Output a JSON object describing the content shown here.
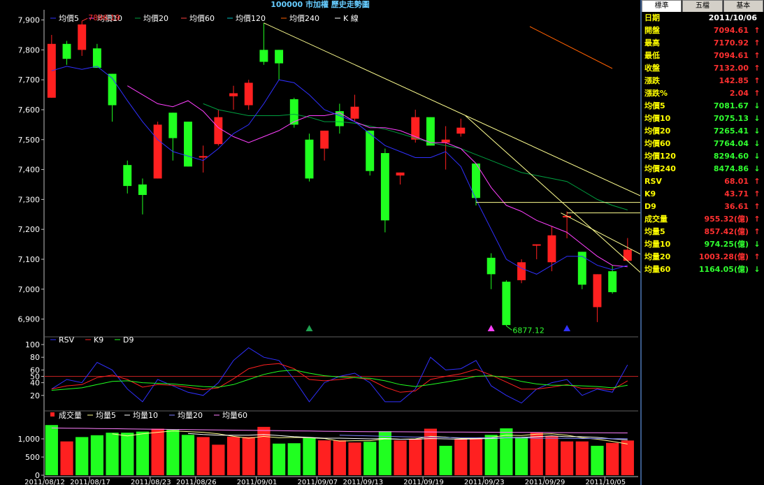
{
  "header": {
    "title": "100000 市加權  歷史走勢圖"
  },
  "colors": {
    "background": "#000000",
    "up": "#ff2020",
    "down": "#20ff20",
    "ma5": "#3030ff",
    "ma10": "#ff40ff",
    "ma20": "#00a040",
    "ma60": "#ff4040",
    "ma120": "#00c0c0",
    "ma240": "#ff6000",
    "trendline": "#ffff90",
    "label_yellow": "#ffff00",
    "axis_text": "#ffffff"
  },
  "tabs": [
    "標準",
    "五檔",
    "基本"
  ],
  "active_tab": "標準",
  "info_panel": {
    "date_label": "日期",
    "date_value": "2011/10/06",
    "rows": [
      {
        "label": "開盤",
        "value": "7094.61",
        "dir": "up"
      },
      {
        "label": "最高",
        "value": "7170.92",
        "dir": "up"
      },
      {
        "label": "最低",
        "value": "7094.61",
        "dir": "up"
      },
      {
        "label": "收盤",
        "value": "7132.00",
        "dir": "up"
      },
      {
        "label": "漲跌",
        "value": "142.85",
        "dir": "up"
      },
      {
        "label": "漲跌%",
        "value": "2.04",
        "dir": "up"
      },
      {
        "label": "均價5",
        "value": "7081.67",
        "dir": "down"
      },
      {
        "label": "均價10",
        "value": "7075.13",
        "dir": "down"
      },
      {
        "label": "均價20",
        "value": "7265.41",
        "dir": "down"
      },
      {
        "label": "均價60",
        "value": "7764.04",
        "dir": "down"
      },
      {
        "label": "均價120",
        "value": "8294.60",
        "dir": "down"
      },
      {
        "label": "均價240",
        "value": "8474.86",
        "dir": "down"
      },
      {
        "label": "RSV",
        "value": "68.01",
        "dir": "up"
      },
      {
        "label": "K9",
        "value": "43.71",
        "dir": "up"
      },
      {
        "label": "D9",
        "value": "36.61",
        "dir": "up"
      },
      {
        "label": "成交量",
        "value": "955.32(億)",
        "dir": "up"
      },
      {
        "label": "均量5",
        "value": "857.42(億)",
        "dir": "up"
      },
      {
        "label": "均量10",
        "value": "974.25(億)",
        "dir": "down"
      },
      {
        "label": "均量20",
        "value": "1003.28(億)",
        "dir": "up"
      },
      {
        "label": "均量60",
        "value": "1164.05(億)",
        "dir": "down"
      }
    ],
    "arrow_up": "↑",
    "arrow_down": "↓"
  },
  "chart_data": [
    {
      "type": "candlestick",
      "legend": [
        "均價5",
        "均價10",
        "均價20",
        "均價60",
        "均價120",
        "均價240",
        "K 線"
      ],
      "ylim": [
        6850,
        7920
      ],
      "yticks": [
        "7,900",
        "7,800",
        "7,700",
        "7,600",
        "7,500",
        "7,400",
        "7,300",
        "7,200",
        "7,100",
        "7,000",
        "6,900"
      ],
      "ytick_values": [
        7900,
        7800,
        7700,
        7600,
        7500,
        7400,
        7300,
        7200,
        7100,
        7000,
        6900
      ],
      "xtick_labels": [
        "2011/08/12",
        "2011/08/17",
        "2011/08/23",
        "2011/08/26",
        "2011/09/01",
        "2011/09/07",
        "2011/09/13",
        "2011/09/19",
        "2011/09/23",
        "2011/09/29",
        "2011/10/05"
      ],
      "xtick_index": [
        0,
        3,
        7,
        10,
        14,
        18,
        21,
        25,
        29,
        33,
        37
      ],
      "annotations": [
        {
          "text": "7896.19",
          "index": 2,
          "value": 7896.19
        },
        {
          "text": "6877.12",
          "index": 30,
          "value": 6877.12
        }
      ],
      "candles": [
        {
          "o": 7640,
          "h": 7850,
          "l": 7640,
          "c": 7820
        },
        {
          "o": 7820,
          "h": 7830,
          "l": 7750,
          "c": 7770
        },
        {
          "o": 7800,
          "h": 7896,
          "l": 7780,
          "c": 7885
        },
        {
          "o": 7805,
          "h": 7820,
          "l": 7740,
          "c": 7740
        },
        {
          "o": 7720,
          "h": 7720,
          "l": 7560,
          "c": 7615
        },
        {
          "o": 7415,
          "h": 7430,
          "l": 7320,
          "c": 7345
        },
        {
          "o": 7350,
          "h": 7370,
          "l": 7250,
          "c": 7315
        },
        {
          "o": 7370,
          "h": 7560,
          "l": 7370,
          "c": 7550
        },
        {
          "o": 7590,
          "h": 7590,
          "l": 7430,
          "c": 7505
        },
        {
          "o": 7560,
          "h": 7560,
          "l": 7410,
          "c": 7410
        },
        {
          "o": 7440,
          "h": 7480,
          "l": 7390,
          "c": 7445
        },
        {
          "o": 7485,
          "h": 7600,
          "l": 7480,
          "c": 7575
        },
        {
          "o": 7645,
          "h": 7680,
          "l": 7600,
          "c": 7655
        },
        {
          "o": 7615,
          "h": 7700,
          "l": 7600,
          "c": 7690
        },
        {
          "o": 7800,
          "h": 7890,
          "l": 7750,
          "c": 7760
        },
        {
          "o": 7800,
          "h": 7800,
          "l": 7700,
          "c": 7755
        },
        {
          "o": 7635,
          "h": 7640,
          "l": 7540,
          "c": 7550
        },
        {
          "o": 7500,
          "h": 7520,
          "l": 7360,
          "c": 7370
        },
        {
          "o": 7470,
          "h": 7530,
          "l": 7430,
          "c": 7530
        },
        {
          "o": 7595,
          "h": 7620,
          "l": 7520,
          "c": 7545
        },
        {
          "o": 7570,
          "h": 7650,
          "l": 7560,
          "c": 7610
        },
        {
          "o": 7530,
          "h": 7530,
          "l": 7380,
          "c": 7395
        },
        {
          "o": 7455,
          "h": 7470,
          "l": 7190,
          "c": 7230
        },
        {
          "o": 7380,
          "h": 7390,
          "l": 7350,
          "c": 7390
        },
        {
          "o": 7500,
          "h": 7600,
          "l": 7490,
          "c": 7575
        },
        {
          "o": 7575,
          "h": 7575,
          "l": 7480,
          "c": 7480
        },
        {
          "o": 7490,
          "h": 7545,
          "l": 7400,
          "c": 7500
        },
        {
          "o": 7520,
          "h": 7570,
          "l": 7510,
          "c": 7540
        },
        {
          "o": 7420,
          "h": 7420,
          "l": 7280,
          "c": 7305
        },
        {
          "o": 7105,
          "h": 7120,
          "l": 7000,
          "c": 7050
        },
        {
          "o": 7025,
          "h": 7030,
          "l": 6877,
          "c": 6880
        },
        {
          "o": 7030,
          "h": 7100,
          "l": 7020,
          "c": 7090
        },
        {
          "o": 7150,
          "h": 7150,
          "l": 7100,
          "c": 7150
        },
        {
          "o": 7090,
          "h": 7210,
          "l": 7060,
          "c": 7180
        },
        {
          "o": 7240,
          "h": 7260,
          "l": 7170,
          "c": 7245
        },
        {
          "o": 7125,
          "h": 7125,
          "l": 7000,
          "c": 7015
        },
        {
          "o": 6940,
          "h": 7050,
          "l": 6890,
          "c": 7050
        },
        {
          "o": 7060,
          "h": 7080,
          "l": 6985,
          "c": 6990
        },
        {
          "o": 7095,
          "h": 7171,
          "l": 7095,
          "c": 7132
        }
      ],
      "ma5": [
        7730,
        7745,
        7735,
        7745,
        7705,
        7630,
        7560,
        7500,
        7460,
        7445,
        7430,
        7470,
        7520,
        7550,
        7620,
        7700,
        7690,
        7650,
        7600,
        7580,
        7560,
        7520,
        7480,
        7460,
        7440,
        7440,
        7460,
        7410,
        7300,
        7200,
        7100,
        7070,
        7050,
        7080,
        7110,
        7110,
        7080,
        7065,
        7080
      ],
      "ma10": [
        null,
        null,
        null,
        null,
        null,
        7680,
        7650,
        7620,
        7610,
        7630,
        7595,
        7540,
        7510,
        7490,
        7510,
        7530,
        7560,
        7580,
        7580,
        7590,
        7560,
        7540,
        7540,
        7530,
        7510,
        7490,
        7490,
        7470,
        7420,
        7340,
        7280,
        7260,
        7230,
        7210,
        7190,
        7150,
        7110,
        7080,
        7075
      ],
      "ma20": [
        null,
        null,
        null,
        null,
        null,
        null,
        null,
        null,
        null,
        null,
        7620,
        7600,
        7590,
        7580,
        7580,
        7580,
        7585,
        7575,
        7560,
        7560,
        7555,
        7545,
        7535,
        7520,
        7505,
        7490,
        7480,
        7470,
        7450,
        7430,
        7410,
        7390,
        7380,
        7370,
        7360,
        7330,
        7300,
        7280,
        7265
      ],
      "trendlines": [
        {
          "from": [
            14,
            7890
          ],
          "to": [
            39.8,
            7290
          ]
        },
        {
          "from": [
            27.3,
            7580
          ],
          "to": [
            39.2,
            7040
          ]
        },
        {
          "from": [
            28,
            7290
          ],
          "to": [
            39.8,
            7290
          ]
        },
        {
          "from": [
            34,
            7255
          ],
          "to": [
            39.8,
            7255
          ]
        },
        {
          "from": [
            33.6,
            7255
          ],
          "to": [
            39.5,
            7100
          ]
        }
      ],
      "markers": [
        {
          "index": 17,
          "shape": "triangle",
          "color": "#20a050"
        },
        {
          "index": 29,
          "shape": "triangle",
          "color": "#ff40ff"
        },
        {
          "index": 34,
          "shape": "triangle",
          "color": "#3030ff"
        }
      ]
    },
    {
      "type": "line",
      "legend": [
        "RSV",
        "K9",
        "D9"
      ],
      "ylim": [
        0,
        100
      ],
      "yticks": [
        "100",
        "80",
        "60",
        "50",
        "40",
        "20"
      ],
      "ytick_values": [
        100,
        80,
        60,
        50,
        40,
        20
      ],
      "reference_line": 50,
      "series": [
        {
          "name": "RSV",
          "values": [
            30,
            45,
            40,
            72,
            60,
            30,
            10,
            45,
            35,
            25,
            20,
            40,
            75,
            95,
            80,
            75,
            45,
            10,
            40,
            50,
            55,
            40,
            10,
            10,
            30,
            80,
            60,
            62,
            75,
            35,
            20,
            8,
            30,
            40,
            45,
            20,
            30,
            25,
            68
          ]
        },
        {
          "name": "K9",
          "values": [
            30,
            35,
            37,
            48,
            52,
            45,
            33,
            37,
            36,
            33,
            29,
            32,
            46,
            62,
            68,
            70,
            62,
            45,
            43,
            45,
            48,
            45,
            33,
            25,
            27,
            45,
            50,
            54,
            61,
            52,
            41,
            30,
            30,
            33,
            37,
            31,
            31,
            29,
            43
          ]
        },
        {
          "name": "D9",
          "values": [
            28,
            30,
            32,
            37,
            42,
            43,
            40,
            39,
            38,
            36,
            34,
            33,
            37,
            45,
            53,
            58,
            60,
            55,
            51,
            49,
            48,
            47,
            43,
            37,
            34,
            37,
            41,
            45,
            50,
            51,
            48,
            42,
            38,
            36,
            36,
            35,
            34,
            32,
            36
          ]
        }
      ]
    },
    {
      "type": "bar",
      "legend": [
        "成交量",
        "均量5",
        "均量10",
        "均量20",
        "均量60"
      ],
      "ylim": [
        0,
        1500
      ],
      "yticks": [
        "1,000",
        "500",
        "0"
      ],
      "ytick_values": [
        1000,
        500,
        0
      ],
      "volume": [
        1380,
        930,
        1050,
        1100,
        1170,
        1170,
        1200,
        1280,
        1260,
        1110,
        1050,
        840,
        1060,
        1050,
        1330,
        870,
        880,
        1020,
        960,
        960,
        900,
        920,
        1210,
        960,
        990,
        1280,
        810,
        1000,
        1010,
        1110,
        1290,
        1050,
        1170,
        1080,
        930,
        930,
        810,
        890,
        955
      ],
      "volume_dir": [
        "down",
        "up",
        "down",
        "down",
        "down",
        "down",
        "down",
        "up",
        "down",
        "down",
        "up",
        "up",
        "up",
        "up",
        "up",
        "down",
        "down",
        "down",
        "up",
        "up",
        "up",
        "down",
        "down",
        "up",
        "up",
        "up",
        "down",
        "up",
        "up",
        "down",
        "down",
        "down",
        "up",
        "up",
        "up",
        "up",
        "down",
        "up",
        "up"
      ],
      "ma_lines": [
        {
          "name": "均量5",
          "values": [
            null,
            null,
            null,
            null,
            1140,
            1080,
            1140,
            1180,
            1220,
            1200,
            1180,
            1140,
            1070,
            1020,
            1070,
            1030,
            1040,
            1030,
            1010,
            940,
            950,
            950,
            1000,
            990,
            1000,
            1070,
            1050,
            1010,
            1010,
            1040,
            1100,
            1090,
            1130,
            1140,
            1100,
            1030,
            990,
            930,
            857
          ]
        },
        {
          "name": "均量10",
          "values": [
            null,
            null,
            null,
            null,
            null,
            null,
            null,
            null,
            null,
            1150,
            1120,
            1100,
            1100,
            1100,
            1120,
            1090,
            1060,
            1040,
            1020,
            1020,
            1010,
            1000,
            1010,
            990,
            990,
            1010,
            1000,
            990,
            1000,
            1010,
            1030,
            1040,
            1060,
            1080,
            1060,
            1060,
            1040,
            1000,
            974
          ]
        },
        {
          "name": "均量20",
          "values": [
            null,
            null,
            null,
            null,
            null,
            null,
            null,
            null,
            null,
            null,
            null,
            null,
            null,
            null,
            null,
            null,
            null,
            null,
            null,
            1100,
            1090,
            1080,
            1070,
            1060,
            1050,
            1050,
            1040,
            1030,
            1030,
            1030,
            1030,
            1025,
            1020,
            1020,
            1015,
            1010,
            1008,
            1005,
            1003
          ]
        },
        {
          "name": "均量60",
          "values": [
            1300,
            1295,
            1290,
            1285,
            1280,
            1275,
            1270,
            1265,
            1260,
            1255,
            1250,
            1245,
            1240,
            1235,
            1230,
            1225,
            1220,
            1215,
            1210,
            1205,
            1200,
            1198,
            1196,
            1194,
            1192,
            1190,
            1188,
            1186,
            1184,
            1182,
            1180,
            1178,
            1176,
            1174,
            1172,
            1170,
            1168,
            1166,
            1164
          ]
        }
      ]
    }
  ]
}
